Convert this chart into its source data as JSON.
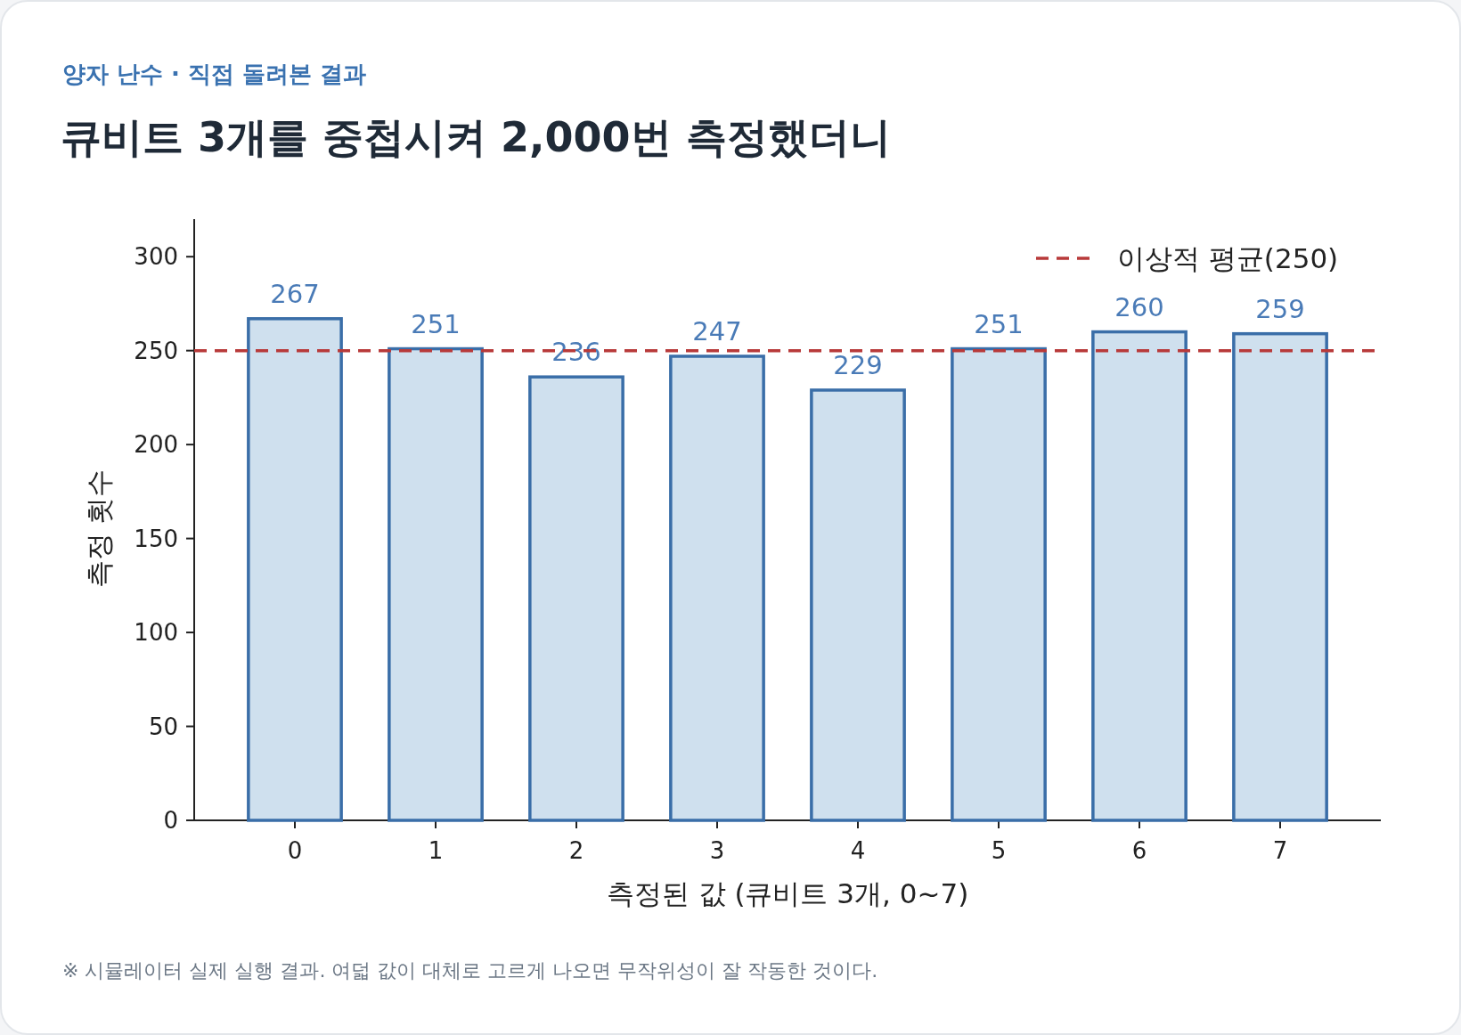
{
  "chart_data": {
    "type": "bar",
    "subtitle": "양자 난수 · 직접 돌려본 결과",
    "title": "큐비트 3개를 중첩시켜 2,000번 측정했더니",
    "xlabel": "측정된 값 (큐비트 3개, 0~7)",
    "ylabel": "측정 횟수",
    "categories": [
      "0",
      "1",
      "2",
      "3",
      "4",
      "5",
      "6",
      "7"
    ],
    "series": [
      {
        "color": "#cfe0ee",
        "values": [
          267,
          251,
          236,
          247,
          229,
          251,
          260,
          259
        ]
      }
    ],
    "ylim": [
      0,
      320
    ],
    "yticks": [
      0,
      50,
      100,
      150,
      200,
      250,
      300
    ],
    "data_labels": true,
    "grid": false,
    "legend": "top right",
    "ref_lines": [
      {
        "axis": "y",
        "value": 250,
        "label": "이상적 평균(250)",
        "color": "#b83a3a",
        "line_style": "dashed"
      }
    ],
    "annotations": [
      "※ 시뮬레이터 실제 실행 결과. 여덟 값이 대체로 고르게 나오면 무작위성이 잘 작동한 것이다."
    ]
  }
}
